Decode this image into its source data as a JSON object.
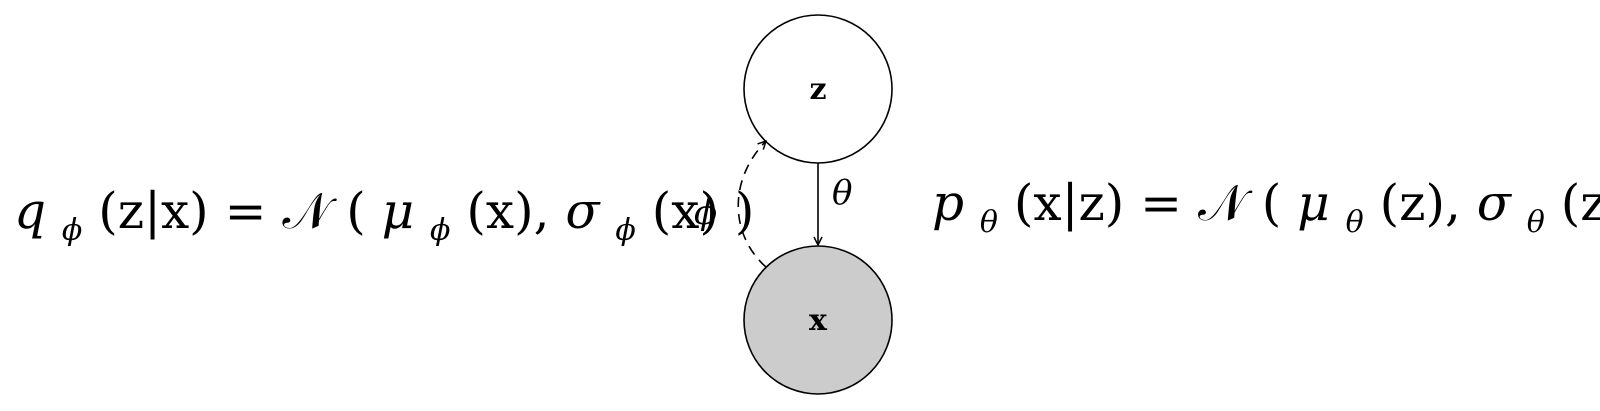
{
  "diagram": {
    "nodes": [
      {
        "id": "z",
        "label": "z",
        "observed": false,
        "fill": "#ffffff"
      },
      {
        "id": "x",
        "label": "x",
        "observed": true,
        "fill": "#cccccc"
      }
    ],
    "edges": [
      {
        "from": "z",
        "to": "x",
        "label": "θ",
        "style": "solid"
      },
      {
        "from": "x",
        "to": "z",
        "label": "ϕ",
        "style": "dashed"
      }
    ],
    "equations": {
      "encoder": {
        "q": "q",
        "q_sub": "ϕ",
        "args": "(z|x) = ",
        "dist": "𝒩",
        "open": "(",
        "mu": "μ",
        "mu_sub": "ϕ",
        "mu_arg": "(x), ",
        "sigma": "σ",
        "sigma_sub": "ϕ",
        "sigma_arg": "(x)",
        "close": ")"
      },
      "decoder": {
        "p": "p",
        "p_sub": "θ",
        "args": "(x|z) = ",
        "dist": "𝒩",
        "open": "(",
        "mu": "μ",
        "mu_sub": "θ",
        "mu_arg": "(z), ",
        "sigma": "σ",
        "sigma_sub": "θ",
        "sigma_arg": "(z)",
        "close": ")"
      }
    }
  }
}
